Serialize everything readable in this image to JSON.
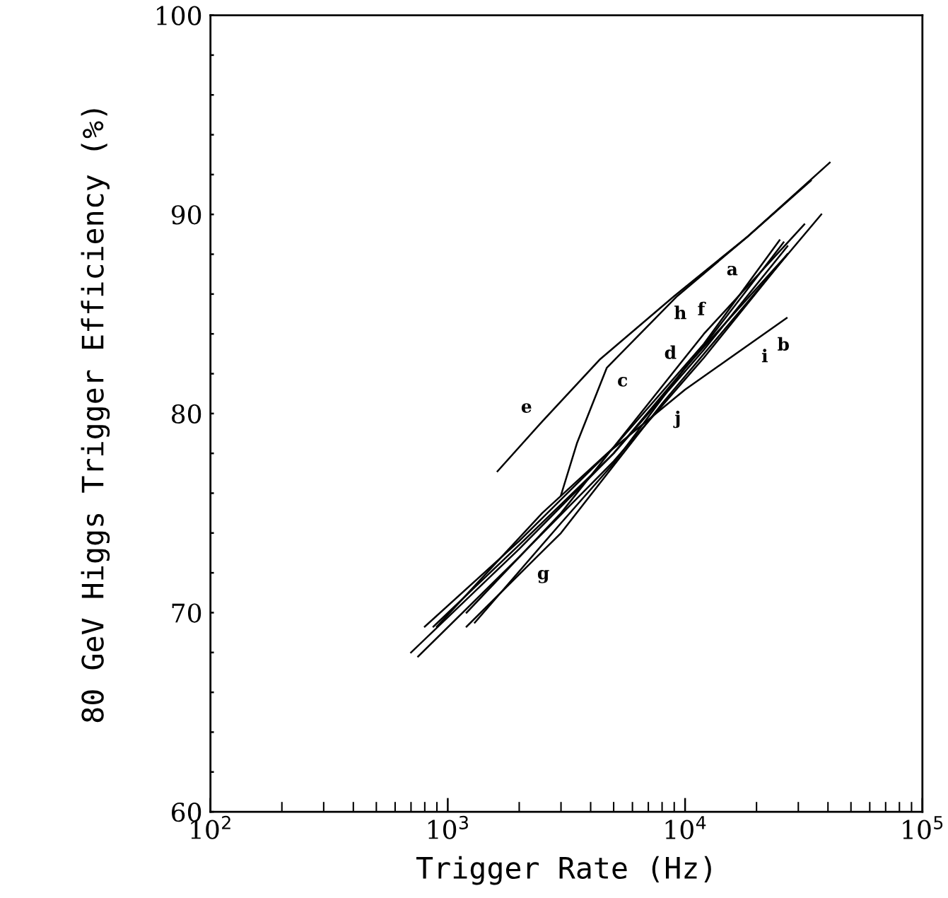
{
  "chart_data": {
    "type": "line",
    "xlabel": "Trigger Rate (Hz)",
    "ylabel": "80 GeV Higgs Trigger Efficiency (%)",
    "log": "x",
    "grid": false,
    "marker": "none",
    "line_style": "solid",
    "xlim": [
      100,
      100000
    ],
    "xticks": [
      {
        "value": 100,
        "label": "10$^{2}$"
      },
      {
        "value": 1000,
        "label": "10$^{3}$"
      },
      {
        "value": 10000,
        "label": "10$^{4}$"
      },
      {
        "value": 100000,
        "label": "10$^{5}$"
      }
    ],
    "ylim": [
      60,
      100
    ],
    "yticks": [
      60,
      {
        "value": 62,
        "label": null
      },
      {
        "value": 64,
        "label": null
      },
      {
        "value": 66,
        "label": null
      },
      {
        "value": 68,
        "label": null
      },
      70,
      {
        "value": 72,
        "label": null
      },
      {
        "value": 74,
        "label": null
      },
      {
        "value": 76,
        "label": null
      },
      {
        "value": 78,
        "label": null
      },
      80,
      {
        "value": 82,
        "label": null
      },
      {
        "value": 84,
        "label": null
      },
      {
        "value": 86,
        "label": null
      },
      {
        "value": 88,
        "label": null
      },
      90,
      {
        "value": 92,
        "label": null
      },
      {
        "value": 94,
        "label": null
      },
      {
        "value": 96,
        "label": null
      },
      {
        "value": 98,
        "label": null
      },
      100
    ],
    "series": [
      {
        "color": "#000000",
        "x": [
          800,
          2000,
          5000,
          12000,
          25000
        ],
        "values": [
          69.3,
          73.6,
          78.3,
          83.5,
          88.7
        ]
      },
      {
        "color": "#000000",
        "x": [
          900,
          2500,
          4700,
          10000,
          26800
        ],
        "values": [
          69.3,
          75.0,
          78.0,
          81.2,
          84.8
        ]
      },
      {
        "color": "#000000",
        "x": [
          3000,
          3500,
          4680,
          9270,
          18400,
          33900
        ],
        "values": [
          75.9,
          78.5,
          82.3,
          85.9,
          88.9,
          91.7
        ]
      },
      {
        "color": "#000000",
        "x": [
          870,
          2000,
          5000,
          12000,
          26000
        ],
        "values": [
          69.3,
          73.4,
          78.0,
          83.4,
          88.6
        ]
      },
      {
        "color": "#000000",
        "x": [
          1620,
          2500,
          4360,
          9000,
          18400,
          40700
        ],
        "values": [
          77.1,
          79.6,
          82.7,
          85.9,
          88.9,
          92.6
        ]
      },
      {
        "color": "#000000",
        "x": [
          1200,
          3000,
          8000,
          37500
        ],
        "values": [
          69.3,
          74.0,
          80.5,
          90.0
        ]
      },
      {
        "color": "#000000",
        "x": [
          1300,
          3000,
          5000,
          10000,
          27000
        ],
        "values": [
          69.5,
          74.5,
          77.5,
          82.3,
          88.0
        ]
      },
      {
        "color": "#000000",
        "x": [
          1200,
          3000,
          6000,
          12000,
          31800
        ],
        "values": [
          70.0,
          75.0,
          79.5,
          84.0,
          89.5
        ]
      },
      {
        "color": "#000000",
        "x": [
          700,
          2000,
          5000,
          12000,
          27000
        ],
        "values": [
          68.0,
          73.2,
          78.0,
          83.2,
          88.4
        ]
      },
      {
        "color": "#000000",
        "x": [
          750,
          2000,
          5000,
          12000,
          27000
        ],
        "values": [
          67.8,
          72.8,
          77.6,
          82.8,
          88.0
        ]
      }
    ],
    "annotations": [
      {
        "text": "a",
        "x": 18400,
        "y": 86.5
      },
      {
        "text": "b",
        "x": 22300,
        "y": 84.1
      },
      {
        "text": "c",
        "x": 4680,
        "y": 82.3
      },
      {
        "text": "d",
        "x": 10100,
        "y": 82.3
      },
      {
        "text": "e",
        "x": 2500,
        "y": 79.6
      },
      {
        "text": "f",
        "x": 14700,
        "y": 84.2
      },
      {
        "text": "g",
        "x": 2170,
        "y": 72.6
      },
      {
        "text": "h",
        "x": 12000,
        "y": 84.0
      },
      {
        "text": "i",
        "x": 14800,
        "y": 84.5
      },
      {
        "text": "j",
        "x": 8000,
        "y": 80.4
      }
    ]
  }
}
